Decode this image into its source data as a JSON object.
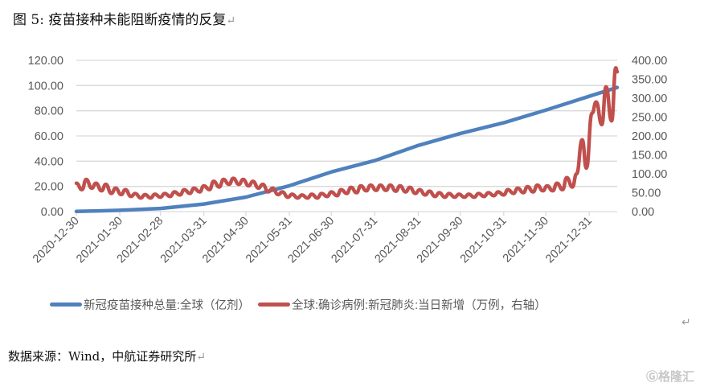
{
  "title": "图 5:  疫苗接种未能阻断疫情的反复",
  "return_mark": "↵",
  "source": "数据来源：Wind，中航证券研究所",
  "watermark": "格隆汇",
  "chart_data": {
    "type": "line",
    "title": "",
    "grid": true,
    "legend_position": "bottom",
    "y_left": {
      "ylim": [
        0,
        120
      ],
      "ticks": [
        "0.00",
        "20.00",
        "40.00",
        "60.00",
        "80.00",
        "100.00",
        "120.00"
      ]
    },
    "y_right": {
      "ylim": [
        0,
        400
      ],
      "ticks": [
        "0.00",
        "50.00",
        "100.00",
        "150.00",
        "200.00",
        "250.00",
        "300.00",
        "350.00",
        "400.00"
      ]
    },
    "x_ticks": [
      "2020-12-30",
      "2021-01-30",
      "2021-02-28",
      "2021-03-31",
      "2021-04-30",
      "2021-05-31",
      "2021-06-30",
      "2021-07-31",
      "2021-08-31",
      "2021-09-30",
      "2021-10-31",
      "2021-11-30",
      "2021-12-31"
    ],
    "x_range": [
      "2020-12-30",
      "2022-01-20"
    ],
    "series": [
      {
        "name": "新冠疫苗接种总量:全球（亿剂）",
        "axis": "left",
        "color": "#4F81BD",
        "x": [
          "2020-12-30",
          "2021-01-30",
          "2021-02-28",
          "2021-03-31",
          "2021-04-30",
          "2021-05-31",
          "2021-06-30",
          "2021-07-31",
          "2021-08-31",
          "2021-09-30",
          "2021-10-31",
          "2021-11-30",
          "2021-12-31",
          "2022-01-20"
        ],
        "values": [
          0.1,
          1.0,
          2.5,
          6.0,
          11.5,
          20.5,
          31.5,
          40.5,
          52.5,
          62.0,
          70.5,
          80.5,
          91.5,
          98.5
        ]
      },
      {
        "name": "全球:确诊病例:新冠肺炎:当日新增（万例，右轴）",
        "axis": "right",
        "color": "#C0504D",
        "x": [
          "2020-12-30",
          "2021-01-03",
          "2021-01-06",
          "2021-01-10",
          "2021-01-13",
          "2021-01-17",
          "2021-01-20",
          "2021-01-24",
          "2021-01-27",
          "2021-01-31",
          "2021-02-03",
          "2021-02-07",
          "2021-02-10",
          "2021-02-14",
          "2021-02-17",
          "2021-02-21",
          "2021-02-24",
          "2021-02-28",
          "2021-03-03",
          "2021-03-07",
          "2021-03-10",
          "2021-03-14",
          "2021-03-17",
          "2021-03-21",
          "2021-03-24",
          "2021-03-28",
          "2021-03-31",
          "2021-04-04",
          "2021-04-07",
          "2021-04-11",
          "2021-04-14",
          "2021-04-18",
          "2021-04-21",
          "2021-04-25",
          "2021-04-28",
          "2021-05-02",
          "2021-05-05",
          "2021-05-09",
          "2021-05-12",
          "2021-05-16",
          "2021-05-19",
          "2021-05-23",
          "2021-05-26",
          "2021-05-30",
          "2021-06-02",
          "2021-06-06",
          "2021-06-09",
          "2021-06-13",
          "2021-06-16",
          "2021-06-20",
          "2021-06-23",
          "2021-06-27",
          "2021-06-30",
          "2021-07-04",
          "2021-07-07",
          "2021-07-11",
          "2021-07-14",
          "2021-07-18",
          "2021-07-21",
          "2021-07-25",
          "2021-07-28",
          "2021-08-01",
          "2021-08-04",
          "2021-08-08",
          "2021-08-11",
          "2021-08-15",
          "2021-08-18",
          "2021-08-22",
          "2021-08-25",
          "2021-08-29",
          "2021-09-01",
          "2021-09-05",
          "2021-09-08",
          "2021-09-12",
          "2021-09-15",
          "2021-09-19",
          "2021-09-22",
          "2021-09-26",
          "2021-09-29",
          "2021-10-03",
          "2021-10-06",
          "2021-10-10",
          "2021-10-13",
          "2021-10-17",
          "2021-10-20",
          "2021-10-24",
          "2021-10-27",
          "2021-10-31",
          "2021-11-03",
          "2021-11-07",
          "2021-11-10",
          "2021-11-14",
          "2021-11-17",
          "2021-11-21",
          "2021-11-24",
          "2021-11-28",
          "2021-12-01",
          "2021-12-05",
          "2021-12-08",
          "2021-12-12",
          "2021-12-15",
          "2021-12-19",
          "2021-12-22",
          "2021-12-26",
          "2021-12-29",
          "2022-01-02",
          "2022-01-05",
          "2022-01-09",
          "2022-01-12",
          "2022-01-16",
          "2022-01-19",
          "2022-01-20"
        ],
        "values": [
          75,
          58,
          85,
          62,
          75,
          55,
          72,
          48,
          62,
          45,
          58,
          40,
          48,
          36,
          45,
          36,
          46,
          38,
          48,
          40,
          52,
          44,
          58,
          48,
          62,
          52,
          68,
          58,
          80,
          65,
          85,
          72,
          88,
          72,
          85,
          68,
          80,
          62,
          72,
          52,
          62,
          45,
          52,
          38,
          46,
          36,
          44,
          36,
          46,
          36,
          48,
          40,
          52,
          42,
          58,
          48,
          64,
          50,
          68,
          55,
          70,
          56,
          70,
          56,
          70,
          54,
          68,
          52,
          64,
          48,
          58,
          44,
          54,
          40,
          50,
          38,
          48,
          38,
          46,
          38,
          46,
          38,
          48,
          40,
          50,
          42,
          52,
          44,
          58,
          48,
          62,
          50,
          66,
          52,
          70,
          55,
          68,
          55,
          75,
          58,
          90,
          65,
          100,
          190,
          115,
          260,
          290,
          230,
          330,
          240,
          380,
          370
        ]
      }
    ]
  }
}
